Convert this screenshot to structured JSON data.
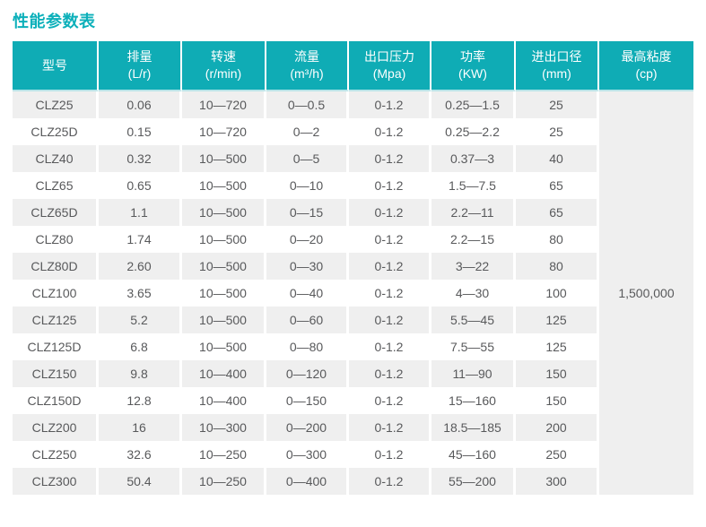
{
  "page": {
    "title": "性能参数表"
  },
  "colors": {
    "accent-teal": "#0FACB5",
    "title-teal": "#0CB0BA",
    "row-alt-gray": "#EFEFEF",
    "body-text": "#58595B",
    "header-text": "#FFFFFF",
    "header-divider": "#FFFFFF",
    "header-bottom-line": "#B9E4E8"
  },
  "table": {
    "columns": [
      {
        "label": "型号",
        "unit": ""
      },
      {
        "label": "排量",
        "unit": "(L/r)"
      },
      {
        "label": "转速",
        "unit": "(r/min)"
      },
      {
        "label": "流量",
        "unit": "(m³/h)"
      },
      {
        "label": "出口压力",
        "unit": "(Mpa)"
      },
      {
        "label": "功率",
        "unit": "(KW)"
      },
      {
        "label": "进出口径",
        "unit": "(mm)"
      },
      {
        "label": "最高粘度",
        "unit": "(cp)"
      }
    ],
    "column_keys": [
      "model",
      "displacement",
      "speed",
      "flow",
      "outlet-pressure",
      "power",
      "port-diameter"
    ],
    "rows": [
      [
        "CLZ25",
        "0.06",
        "10—720",
        "0—0.5",
        "0-1.2",
        "0.25—1.5",
        "25"
      ],
      [
        "CLZ25D",
        "0.15",
        "10—720",
        "0—2",
        "0-1.2",
        "0.25—2.2",
        "25"
      ],
      [
        "CLZ40",
        "0.32",
        "10—500",
        "0—5",
        "0-1.2",
        "0.37—3",
        "40"
      ],
      [
        "CLZ65",
        "0.65",
        "10—500",
        "0—10",
        "0-1.2",
        "1.5—7.5",
        "65"
      ],
      [
        "CLZ65D",
        "1.1",
        "10—500",
        "0—15",
        "0-1.2",
        "2.2—11",
        "65"
      ],
      [
        "CLZ80",
        "1.74",
        "10—500",
        "0—20",
        "0-1.2",
        "2.2—15",
        "80"
      ],
      [
        "CLZ80D",
        "2.60",
        "10—500",
        "0—30",
        "0-1.2",
        "3—22",
        "80"
      ],
      [
        "CLZ100",
        "3.65",
        "10—500",
        "0—40",
        "0-1.2",
        "4—30",
        "100"
      ],
      [
        "CLZ125",
        "5.2",
        "10—500",
        "0—60",
        "0-1.2",
        "5.5—45",
        "125"
      ],
      [
        "CLZ125D",
        "6.8",
        "10—500",
        "0—80",
        "0-1.2",
        "7.5—55",
        "125"
      ],
      [
        "CLZ150",
        "9.8",
        "10—400",
        "0—120",
        "0-1.2",
        "11—90",
        "150"
      ],
      [
        "CLZ150D",
        "12.8",
        "10—400",
        "0—150",
        "0-1.2",
        "15—160",
        "150"
      ],
      [
        "CLZ200",
        "16",
        "10—300",
        "0—200",
        "0-1.2",
        "18.5—185",
        "200"
      ],
      [
        "CLZ250",
        "32.6",
        "10—250",
        "0—300",
        "0-1.2",
        "45—160",
        "250"
      ],
      [
        "CLZ300",
        "50.4",
        "10—250",
        "0—400",
        "0-1.2",
        "55—200",
        "300"
      ]
    ],
    "max_viscosity_value": "1,500,000"
  }
}
